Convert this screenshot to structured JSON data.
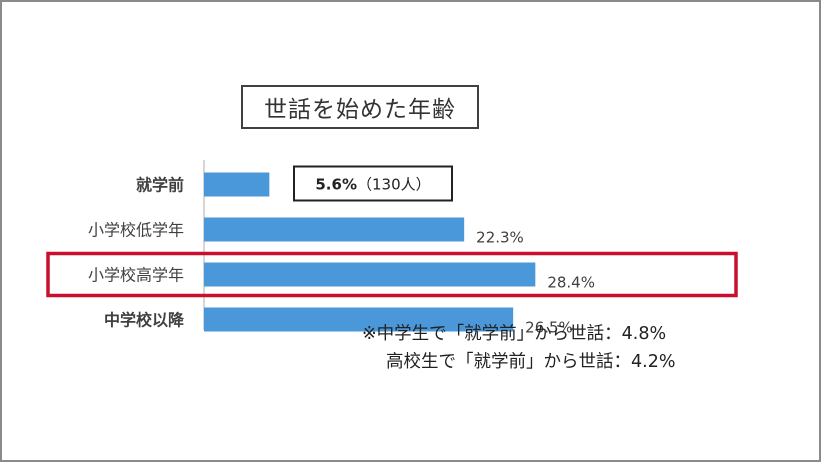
{
  "chart_data": {
    "type": "bar",
    "orientation": "horizontal",
    "title": "世話を始めた年齢",
    "categories": [
      "就学前",
      "小学校低学年",
      "小学校高学年",
      "中学校以降"
    ],
    "values": [
      5.6,
      22.3,
      28.4,
      26.5
    ],
    "value_labels": [
      "5.6%",
      "22.3%",
      "28.4%",
      "26.5%"
    ],
    "value_extra": [
      "（130人）",
      "",
      "",
      ""
    ],
    "unit": "%",
    "xlim": [
      0,
      45
    ],
    "grid": false,
    "bar_color": "#4a97d9",
    "highlight_category": "小学校高学年",
    "highlight_color": "#c8102e",
    "notes": [
      "※中学生で「就学前」から世話：4.8%",
      "高校生で「就学前」から世話：4.2%"
    ]
  }
}
